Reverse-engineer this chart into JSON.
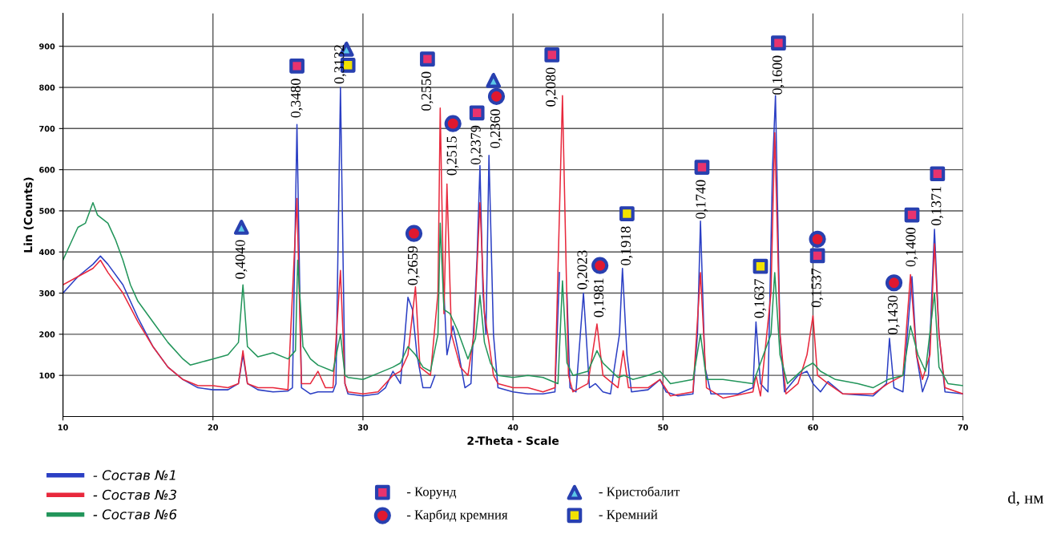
{
  "chart_data": {
    "type": "line",
    "xlabel": "2-Theta - Scale",
    "ylabel": "Lin (Counts)",
    "xlim": [
      10,
      70
    ],
    "ylim": [
      0,
      980
    ],
    "xticks": [
      10,
      20,
      30,
      40,
      50,
      60,
      70
    ],
    "yticks": [
      100,
      200,
      300,
      400,
      500,
      600,
      700,
      800,
      900
    ],
    "grid": true,
    "legend": "bottom",
    "line_style": "solid",
    "marker": "none",
    "series": [
      {
        "name": "- Состав №1",
        "color": "#2b3fc4",
        "x": [
          10,
          10.5,
          11,
          12,
          12.5,
          13,
          14,
          15,
          16,
          17,
          18,
          19,
          20,
          21,
          21.7,
          22,
          22.3,
          23,
          24,
          25,
          25.3,
          25.6,
          25.9,
          26.5,
          27,
          28,
          28.2,
          28.5,
          28.8,
          29,
          30,
          31,
          31.5,
          32,
          32.5,
          32.8,
          33,
          33.3,
          33.6,
          34,
          34.5,
          34.8,
          35.1,
          35.4,
          35.6,
          36,
          36.4,
          36.8,
          37.2,
          37.6,
          37.8,
          38,
          38.2,
          38.4,
          38.7,
          39,
          40,
          41,
          42,
          42.8,
          43.1,
          43.3,
          43.6,
          43.8,
          44.2,
          44.7,
          45.1,
          45.5,
          46,
          46.5,
          47.1,
          47.3,
          47.6,
          47.9,
          49,
          49.8,
          50.2,
          51,
          52,
          52.3,
          52.5,
          52.8,
          53.2,
          55,
          56,
          56.2,
          56.5,
          57,
          57.3,
          57.5,
          57.8,
          58.1,
          59,
          59.6,
          60,
          60.5,
          61,
          62,
          64,
          64.9,
          65.1,
          65.4,
          66,
          66.4,
          66.6,
          66.9,
          67.3,
          67.7,
          68.1,
          68.4,
          68.8,
          70
        ],
        "values": [
          300,
          320,
          340,
          370,
          390,
          370,
          320,
          240,
          170,
          120,
          90,
          70,
          65,
          65,
          80,
          150,
          80,
          65,
          60,
          62,
          70,
          710,
          70,
          55,
          60,
          60,
          80,
          800,
          80,
          55,
          50,
          55,
          70,
          110,
          80,
          200,
          290,
          260,
          150,
          70,
          70,
          100,
          null,
          300,
          150,
          220,
          150,
          70,
          80,
          380,
          610,
          300,
          200,
          635,
          200,
          70,
          60,
          55,
          55,
          60,
          350,
          null,
          300,
          70,
          60,
          300,
          70,
          80,
          60,
          55,
          200,
          360,
          150,
          60,
          65,
          90,
          60,
          50,
          55,
          200,
          475,
          120,
          55,
          55,
          70,
          230,
          80,
          60,
          600,
          780,
          200,
          60,
          100,
          110,
          80,
          60,
          85,
          55,
          50,
          80,
          190,
          70,
          60,
          250,
          340,
          150,
          60,
          100,
          455,
          200,
          60,
          55
        ]
      },
      {
        "name": "- Состав №3",
        "color": "#e8283c",
        "x": [
          10,
          11,
          12,
          12.5,
          13,
          14,
          15,
          16,
          17,
          18,
          19,
          20,
          21,
          21.7,
          22,
          22.3,
          23,
          24,
          25,
          25.6,
          25.9,
          26.5,
          27,
          27.5,
          28,
          28.5,
          28.8,
          29,
          30,
          31,
          32,
          32.5,
          33,
          33.5,
          33.8,
          34.5,
          35,
          35.15,
          35.4,
          35.6,
          35.9,
          36.5,
          37,
          37.4,
          37.8,
          38.1,
          38.4,
          38.7,
          39,
          40,
          41,
          42,
          42.8,
          43.3,
          43.7,
          44,
          45,
          45.6,
          46,
          47,
          47.35,
          47.7,
          49,
          49.8,
          50.5,
          52,
          52.5,
          52.9,
          54,
          56,
          56.2,
          56.5,
          57.2,
          57.45,
          57.8,
          58.2,
          59,
          59.6,
          60,
          60.3,
          61,
          62,
          64,
          65,
          66,
          66.5,
          66.9,
          67.3,
          67.8,
          68.1,
          68.4,
          68.8,
          70
        ],
        "values": [
          320,
          340,
          360,
          380,
          350,
          300,
          230,
          170,
          120,
          90,
          75,
          75,
          70,
          80,
          160,
          80,
          70,
          70,
          65,
          530,
          80,
          80,
          110,
          70,
          70,
          355,
          80,
          60,
          55,
          60,
          100,
          110,
          150,
          315,
          120,
          100,
          300,
          750,
          250,
          565,
          200,
          120,
          100,
          200,
          520,
          250,
          180,
          100,
          80,
          70,
          70,
          60,
          70,
          780,
          100,
          60,
          80,
          225,
          100,
          70,
          160,
          70,
          70,
          90,
          50,
          60,
          350,
          70,
          45,
          60,
          100,
          50,
          300,
          690,
          200,
          55,
          80,
          150,
          245,
          100,
          80,
          55,
          55,
          80,
          100,
          345,
          150,
          90,
          150,
          420,
          200,
          70,
          55
        ]
      },
      {
        "name": "- Состав №6",
        "color": "#22955a",
        "x": [
          10,
          10.5,
          11,
          11.5,
          12,
          12.3,
          13,
          13.5,
          14,
          14.5,
          15,
          16,
          17,
          18,
          18.5,
          19,
          20,
          21,
          21.7,
          22,
          22.3,
          23,
          24,
          25,
          25.5,
          25.65,
          26,
          26.5,
          27,
          28,
          28.5,
          28.8,
          29,
          30,
          31,
          32,
          32.5,
          33,
          33.5,
          34,
          34.5,
          35,
          35.15,
          35.4,
          35.8,
          36.3,
          37,
          37.5,
          37.8,
          38.1,
          38.5,
          39,
          40,
          41,
          42,
          43,
          43.3,
          43.6,
          44,
          45,
          45.6,
          46,
          47,
          47.4,
          48,
          49,
          49.8,
          50.5,
          52,
          52.5,
          52.9,
          54,
          56,
          57.2,
          57.45,
          57.8,
          58.3,
          59.5,
          60,
          60.5,
          61.5,
          63,
          64,
          65,
          66,
          66.5,
          67,
          67.5,
          68.1,
          68.4,
          69,
          70
        ],
        "values": [
          380,
          420,
          460,
          470,
          520,
          490,
          470,
          430,
          380,
          320,
          280,
          230,
          180,
          140,
          125,
          130,
          140,
          150,
          180,
          320,
          170,
          145,
          155,
          140,
          160,
          380,
          170,
          140,
          125,
          110,
          200,
          100,
          95,
          90,
          105,
          120,
          130,
          170,
          150,
          120,
          110,
          200,
          470,
          260,
          250,
          210,
          140,
          190,
          295,
          180,
          130,
          100,
          95,
          100,
          95,
          80,
          330,
          130,
          100,
          110,
          160,
          130,
          95,
          100,
          90,
          100,
          110,
          80,
          90,
          200,
          90,
          90,
          80,
          200,
          350,
          150,
          80,
          120,
          130,
          110,
          90,
          80,
          70,
          90,
          100,
          220,
          150,
          110,
          300,
          120,
          80,
          75
        ]
      },
      {
        "name": "- Корунд",
        "type": "scatter",
        "marker": "square",
        "color": "#e8336e",
        "x": [
          25.6,
          34.3,
          37.6,
          42.6,
          52.6,
          57.7,
          60.3,
          66.6,
          68.3
        ],
        "values": [
          852,
          869,
          738,
          879,
          606,
          908,
          391,
          490,
          590
        ]
      },
      {
        "name": "- Карбид кремния",
        "type": "scatter",
        "marker": "circle",
        "color": "#e01830",
        "x": [
          33.4,
          36.0,
          38.9,
          45.8,
          60.3,
          65.4
        ],
        "values": [
          445,
          712,
          778,
          367,
          431,
          325
        ]
      },
      {
        "name": "- Кристобалит",
        "type": "scatter",
        "marker": "triangle",
        "color": "#5bc8e8",
        "x": [
          21.9,
          28.9,
          38.7
        ],
        "values": [
          460,
          893,
          817
        ]
      },
      {
        "name": "- Кремний",
        "type": "scatter",
        "marker": "square",
        "color": "#f2e200",
        "x": [
          29.0,
          47.6,
          56.5
        ],
        "values": [
          854,
          493,
          365
        ]
      }
    ],
    "annotations": [
      {
        "text": "0,4040",
        "x": 21.9,
        "y": 460
      },
      {
        "text": "0,3480",
        "x": 25.6,
        "y": 852
      },
      {
        "text": "0,3132",
        "x": 28.5,
        "y": 800
      },
      {
        "text": "0,2659",
        "x": 33.4,
        "y": 445
      },
      {
        "text": "0,2550",
        "x": 34.3,
        "y": 869
      },
      {
        "text": "0,2515",
        "x": 36.0,
        "y": 712
      },
      {
        "text": "0,2379",
        "x": 37.6,
        "y": 738
      },
      {
        "text": "0,2360",
        "x": 38.9,
        "y": 778
      },
      {
        "text": "0,2080",
        "x": 42.6,
        "y": 879
      },
      {
        "text": "0,2023",
        "x": 44.7,
        "y": 300
      },
      {
        "text": "0,1981",
        "x": 45.8,
        "y": 367
      },
      {
        "text": "0,1918",
        "x": 47.6,
        "y": 493
      },
      {
        "text": "0,1740",
        "x": 52.6,
        "y": 606
      },
      {
        "text": "0,1637",
        "x": 56.5,
        "y": 365
      },
      {
        "text": "0,1600",
        "x": 57.7,
        "y": 908
      },
      {
        "text": "0,1537",
        "x": 60.3,
        "y": 391
      },
      {
        "text": "0,1430",
        "x": 65.4,
        "y": 325
      },
      {
        "text": "0,1400",
        "x": 66.6,
        "y": 490
      },
      {
        "text": "0,1371",
        "x": 68.3,
        "y": 590
      },
      "d, нм"
    ]
  }
}
